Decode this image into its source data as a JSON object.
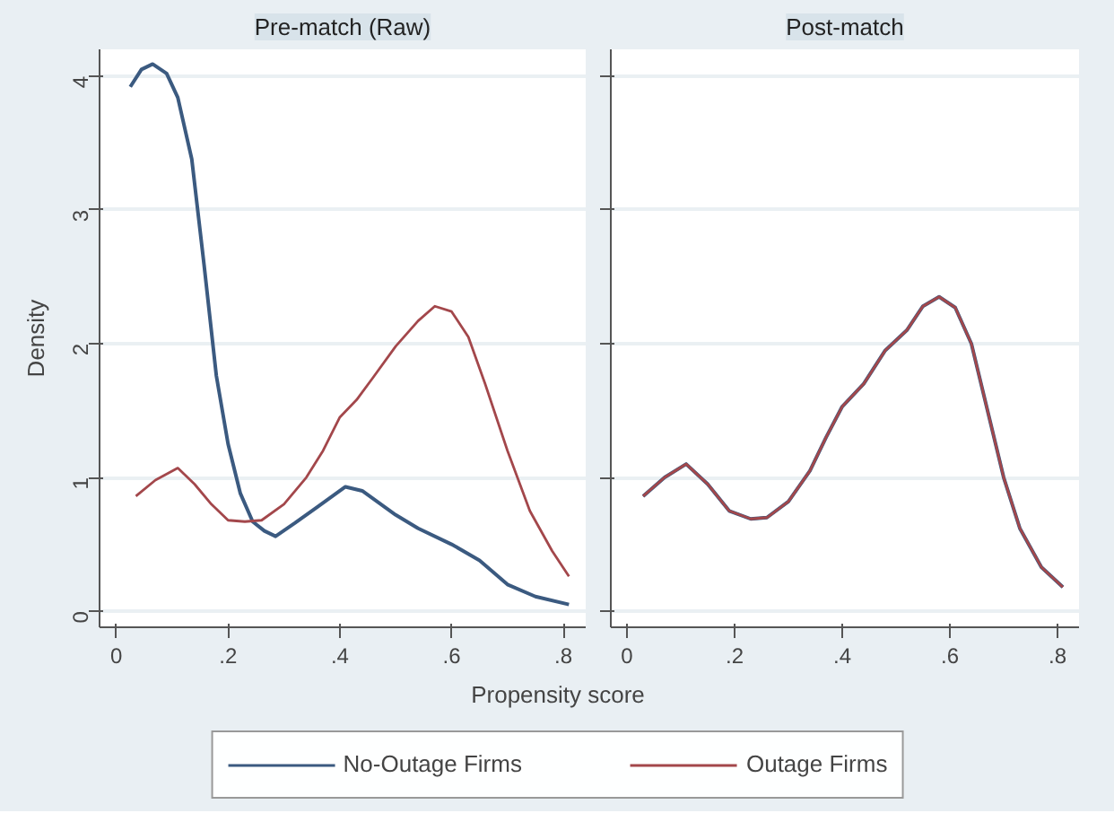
{
  "chart_data": [
    {
      "type": "line",
      "title": "Pre-match (Raw)",
      "ylabel": "Density",
      "xlabel": "Propensity score",
      "legend": "bottom",
      "grid": "y",
      "xlim": [
        -0.03,
        0.84
      ],
      "ylim": [
        -0.12,
        4.2
      ],
      "xticks": [
        0,
        {
          "value": 0.2,
          "label": ".2"
        },
        {
          "value": 0.4,
          "label": ".4"
        },
        {
          "value": 0.6,
          "label": ".6"
        },
        {
          "value": 0.8,
          "label": ".8"
        }
      ],
      "yticks": [
        0,
        1,
        2,
        3,
        4
      ],
      "series": [
        {
          "name": "No-Outage Firms",
          "color": "#3b5a80",
          "x": [
            0.025,
            0.045,
            0.065,
            0.09,
            0.11,
            0.135,
            0.157,
            0.179,
            0.2,
            0.222,
            0.244,
            0.265,
            0.285,
            0.32,
            0.36,
            0.41,
            0.44,
            0.5,
            0.54,
            0.6,
            0.65,
            0.7,
            0.75,
            0.81
          ],
          "values": [
            3.92,
            4.05,
            4.09,
            4.02,
            3.84,
            3.38,
            2.59,
            1.76,
            1.25,
            0.88,
            0.67,
            0.6,
            0.56,
            0.66,
            0.78,
            0.93,
            0.9,
            0.72,
            0.62,
            0.5,
            0.38,
            0.2,
            0.11,
            0.05
          ]
        },
        {
          "name": "Outage Firms",
          "color": "#a3474b",
          "x": [
            0.035,
            0.07,
            0.11,
            0.14,
            0.17,
            0.2,
            0.23,
            0.26,
            0.3,
            0.34,
            0.37,
            0.4,
            0.43,
            0.46,
            0.5,
            0.54,
            0.57,
            0.6,
            0.63,
            0.66,
            0.7,
            0.74,
            0.78,
            0.81
          ],
          "values": [
            0.86,
            0.98,
            1.07,
            0.95,
            0.8,
            0.68,
            0.67,
            0.68,
            0.8,
            1.0,
            1.2,
            1.45,
            1.58,
            1.75,
            1.98,
            2.17,
            2.28,
            2.24,
            2.05,
            1.7,
            1.2,
            0.75,
            0.45,
            0.26
          ]
        }
      ]
    },
    {
      "type": "line",
      "title": "Post-match",
      "grid": "y",
      "tick_labels": "x",
      "xlim": [
        -0.03,
        0.84
      ],
      "ylim": [
        -0.12,
        4.2
      ],
      "xticks": [
        0,
        {
          "value": 0.2,
          "label": ".2"
        },
        {
          "value": 0.4,
          "label": ".4"
        },
        {
          "value": 0.6,
          "label": ".6"
        },
        {
          "value": 0.8,
          "label": ".8"
        }
      ],
      "yticks": [
        0,
        1,
        2,
        3,
        4
      ],
      "series": [
        {
          "color": "#3b5a80",
          "x": [
            0.03,
            0.07,
            0.11,
            0.15,
            0.19,
            0.23,
            0.26,
            0.3,
            0.34,
            0.37,
            0.4,
            0.44,
            0.48,
            0.52,
            0.55,
            0.58,
            0.61,
            0.64,
            0.67,
            0.7,
            0.73,
            0.77,
            0.81
          ],
          "values": [
            0.86,
            1.0,
            1.1,
            0.95,
            0.75,
            0.69,
            0.7,
            0.82,
            1.05,
            1.3,
            1.53,
            1.7,
            1.95,
            2.1,
            2.28,
            2.35,
            2.27,
            2.0,
            1.5,
            1.0,
            0.62,
            0.33,
            0.18
          ]
        },
        {
          "color": "#a3474b",
          "x": [
            0.03,
            0.07,
            0.11,
            0.15,
            0.19,
            0.23,
            0.26,
            0.3,
            0.34,
            0.37,
            0.4,
            0.44,
            0.48,
            0.52,
            0.55,
            0.58,
            0.61,
            0.64,
            0.67,
            0.7,
            0.73,
            0.77,
            0.81
          ],
          "values": [
            0.86,
            1.0,
            1.1,
            0.95,
            0.75,
            0.69,
            0.7,
            0.82,
            1.05,
            1.3,
            1.53,
            1.7,
            1.95,
            2.1,
            2.28,
            2.35,
            2.27,
            2.0,
            1.5,
            1.0,
            0.62,
            0.33,
            0.18
          ]
        }
      ]
    }
  ]
}
